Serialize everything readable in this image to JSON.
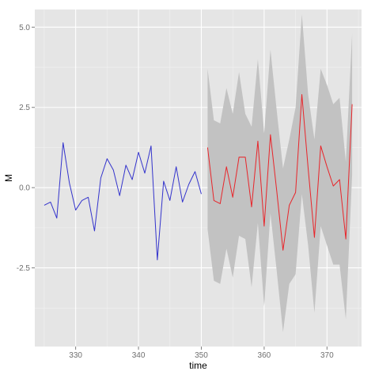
{
  "chart_data": {
    "type": "line",
    "xlabel": "time",
    "ylabel": "M",
    "xlim": [
      323.5,
      375.5
    ],
    "ylim": [
      -4.95,
      5.55
    ],
    "x_ticks": [
      330,
      340,
      350,
      360,
      370
    ],
    "y_ticks": [
      5.0,
      2.5,
      0.0,
      -2.5
    ],
    "x_tick_labels": [
      "330",
      "340",
      "350",
      "360",
      "370"
    ],
    "y_tick_labels": [
      "5.0",
      "2.5",
      "0.0",
      "-2.5"
    ],
    "grid": true,
    "colors": {
      "panel": "#e5e5e5",
      "grid_major": "#ffffff",
      "grid_minor": "#f2f2f2",
      "observed": "#3333cc",
      "forecast": "#e8252a",
      "band": "#c2c2c2"
    },
    "series": [
      {
        "role": "observed",
        "x": [
          325,
          326,
          327,
          328,
          329,
          330,
          331,
          332,
          333,
          334,
          335,
          336,
          337,
          338,
          339,
          340,
          341,
          342,
          343,
          344,
          345,
          346,
          347,
          348,
          349,
          350
        ],
        "values": [
          -0.55,
          -0.45,
          -0.95,
          1.4,
          0.15,
          -0.7,
          -0.4,
          -0.3,
          -1.35,
          0.3,
          0.9,
          0.55,
          -0.25,
          0.7,
          0.25,
          1.1,
          0.45,
          1.3,
          -2.25,
          0.2,
          -0.4,
          0.65,
          -0.45,
          0.1,
          0.5,
          -0.2
        ]
      },
      {
        "role": "forecast",
        "x": [
          351,
          352,
          353,
          354,
          355,
          356,
          357,
          358,
          359,
          360,
          361,
          362,
          363,
          364,
          365,
          366,
          367,
          368,
          369,
          370,
          371,
          372,
          373,
          374
        ],
        "values": [
          1.25,
          -0.4,
          -0.5,
          0.65,
          -0.3,
          0.95,
          0.95,
          -0.6,
          1.45,
          -1.2,
          1.65,
          -0.1,
          -1.95,
          -0.55,
          -0.15,
          2.9,
          0.6,
          -1.55,
          1.3,
          0.65,
          0.05,
          0.25,
          -1.6,
          2.6
        ]
      }
    ],
    "band": {
      "x": [
        351,
        352,
        353,
        354,
        355,
        356,
        357,
        358,
        359,
        360,
        361,
        362,
        363,
        364,
        365,
        366,
        367,
        368,
        369,
        370,
        371,
        372,
        373,
        374
      ],
      "upper": [
        3.7,
        2.1,
        2.0,
        3.1,
        2.3,
        3.6,
        2.3,
        1.9,
        4.0,
        1.7,
        4.3,
        2.4,
        0.6,
        1.5,
        2.5,
        5.4,
        2.9,
        1.5,
        3.7,
        3.2,
        2.6,
        2.8,
        0.8,
        4.8
      ],
      "lower": [
        -1.3,
        -2.9,
        -3.0,
        -1.9,
        -2.8,
        -1.5,
        -1.6,
        -3.1,
        -1.1,
        -3.7,
        -0.8,
        -2.6,
        -4.5,
        -3.0,
        -2.7,
        -0.2,
        -1.8,
        -3.9,
        -1.2,
        -1.8,
        -2.4,
        -2.4,
        -4.1,
        0.4
      ]
    }
  }
}
